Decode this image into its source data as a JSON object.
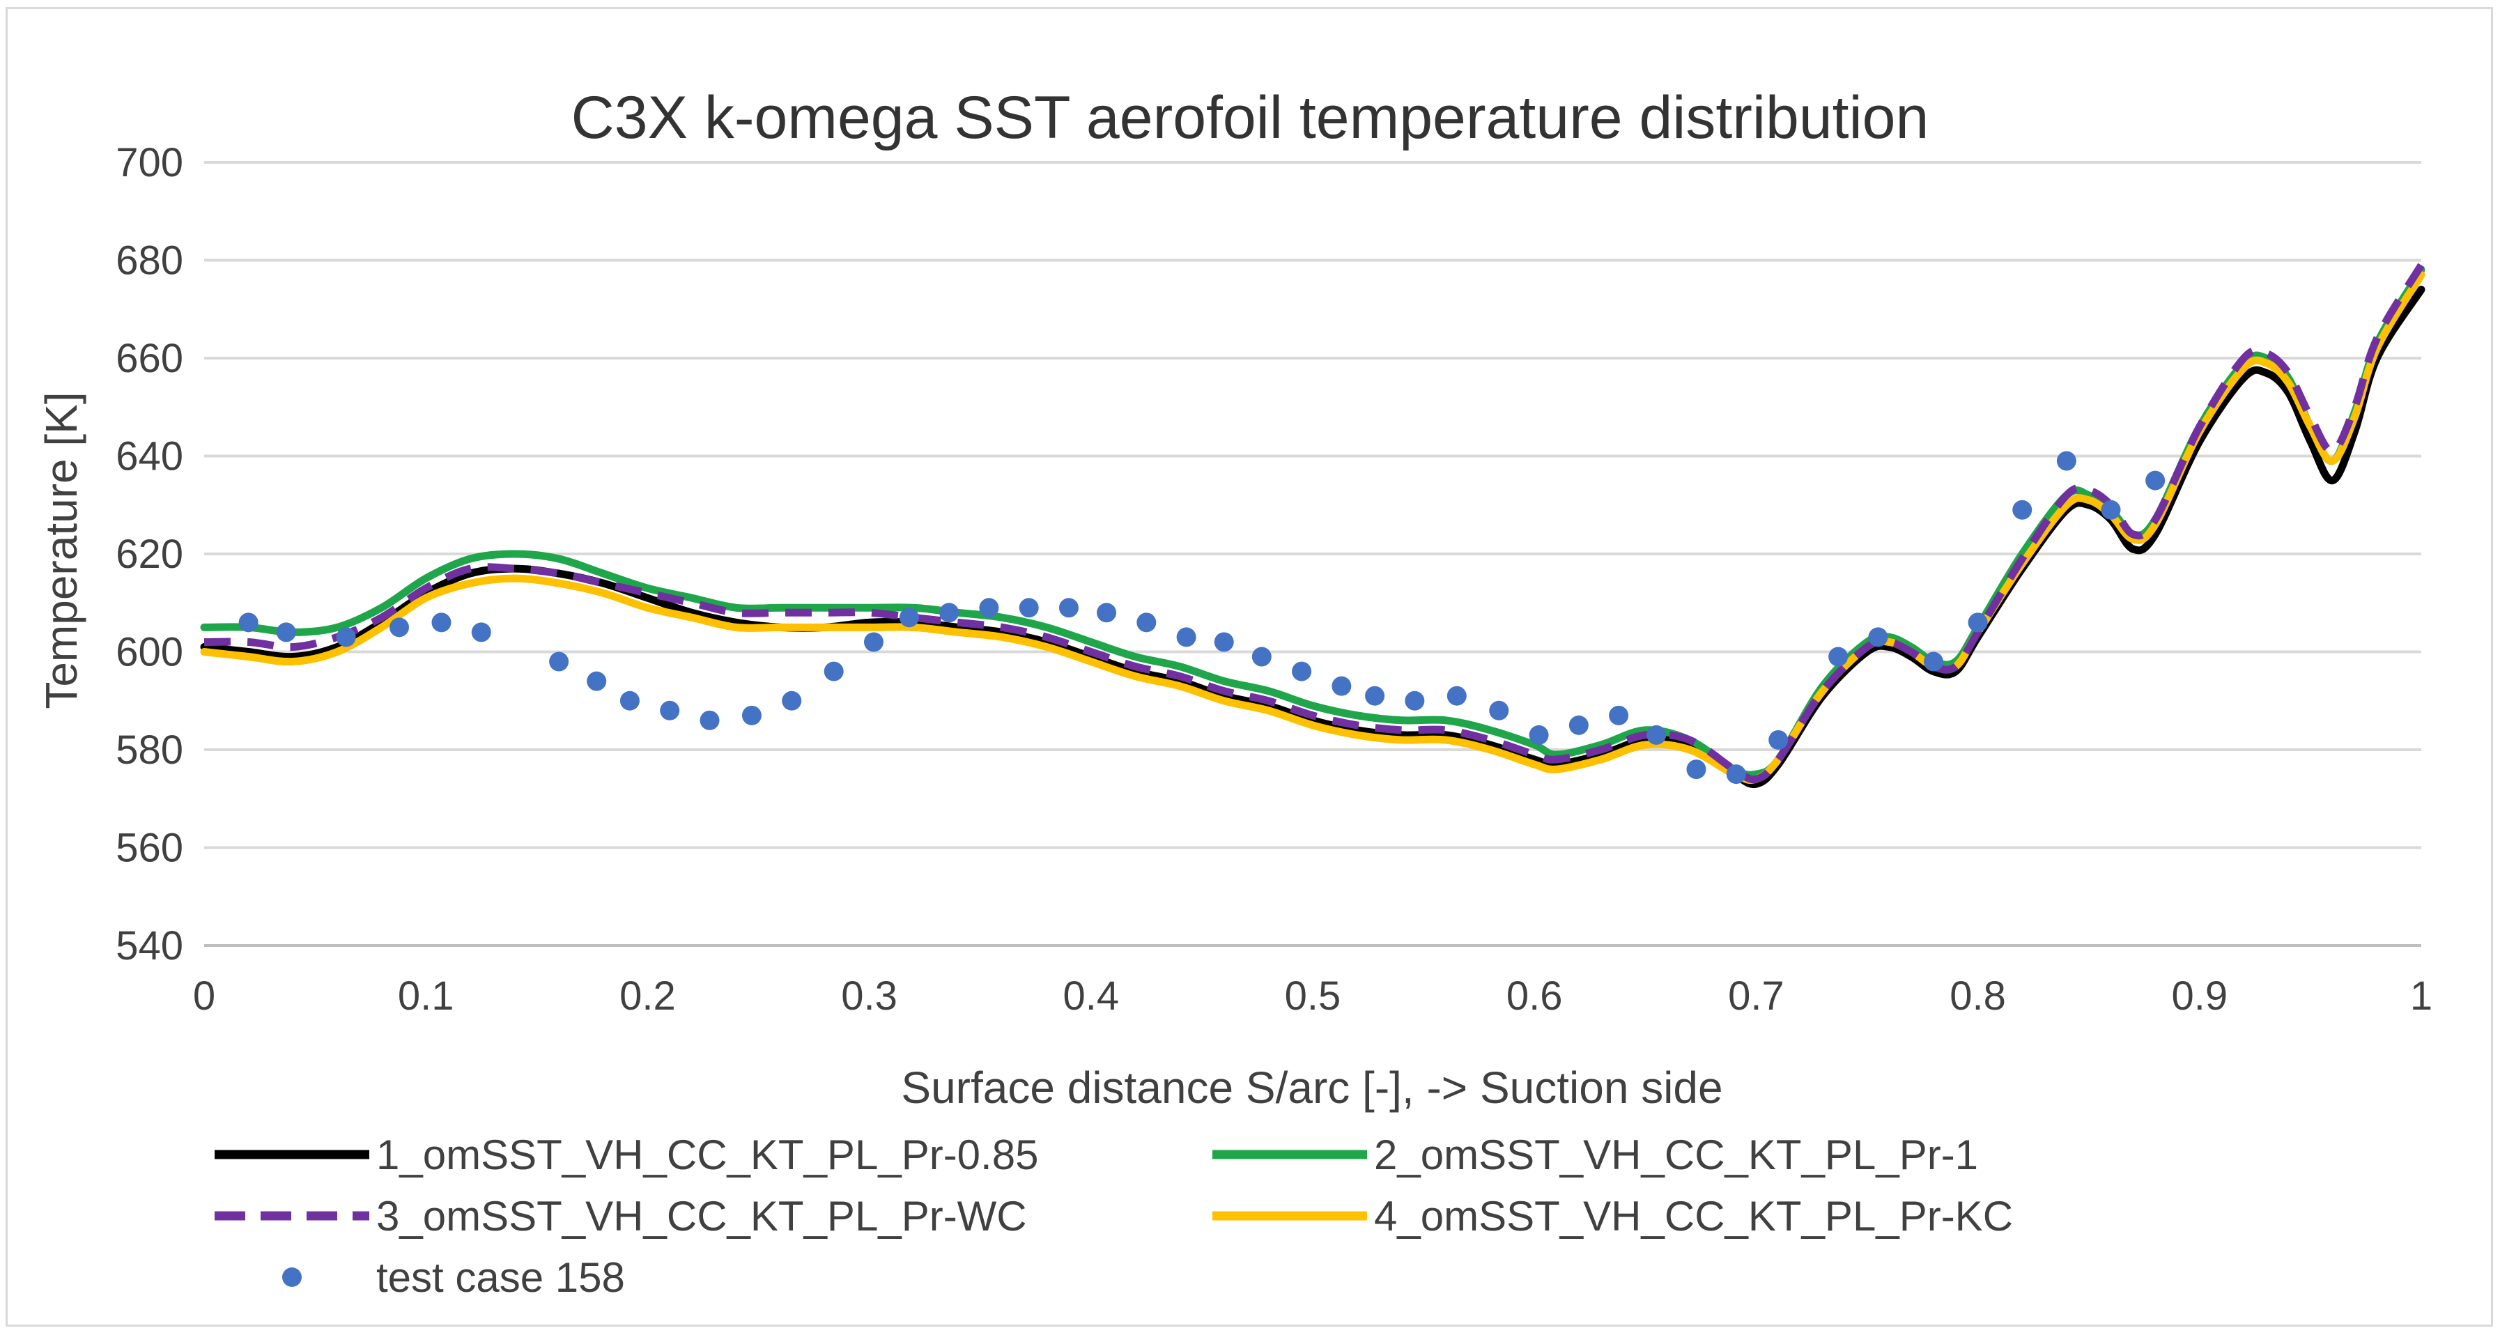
{
  "chart_data": {
    "type": "line",
    "title": "C3X k-omega SST aerofoil temperature distribution",
    "xlabel": "Surface distance S/arc [-], -> Suction side",
    "ylabel": "Temperature [K]",
    "xlim": [
      0,
      1
    ],
    "ylim": [
      540,
      700
    ],
    "xticks": [
      0,
      0.1,
      0.2,
      0.3,
      0.4,
      0.5,
      0.6,
      0.7,
      0.8,
      0.9,
      1
    ],
    "xtick_labels": [
      "0",
      "0.1",
      "0.2",
      "0.3",
      "0.4",
      "0.5",
      "0.6",
      "0.7",
      "0.8",
      "0.9",
      "1"
    ],
    "yticks": [
      540,
      560,
      580,
      600,
      620,
      640,
      660,
      680,
      700
    ],
    "ytick_labels": [
      "540",
      "560",
      "580",
      "600",
      "620",
      "640",
      "660",
      "680",
      "700"
    ],
    "grid": "horizontal",
    "legend_position": "bottom",
    "series": [
      {
        "name": "1_omSST_VH_CC_KT_PL_Pr-0.85",
        "color": "#000000",
        "style": "solid",
        "x": [
          0,
          0.02,
          0.04,
          0.06,
          0.08,
          0.1,
          0.12,
          0.14,
          0.16,
          0.18,
          0.2,
          0.22,
          0.24,
          0.26,
          0.28,
          0.3,
          0.32,
          0.34,
          0.36,
          0.38,
          0.4,
          0.42,
          0.44,
          0.46,
          0.48,
          0.5,
          0.52,
          0.54,
          0.56,
          0.58,
          0.6,
          0.61,
          0.63,
          0.65,
          0.67,
          0.69,
          0.7,
          0.71,
          0.73,
          0.75,
          0.76,
          0.77,
          0.78,
          0.79,
          0.8,
          0.82,
          0.84,
          0.85,
          0.86,
          0.87,
          0.88,
          0.9,
          0.92,
          0.93,
          0.94,
          0.95,
          0.96,
          0.97,
          0.98,
          1.0
        ],
        "y": [
          601,
          600,
          599,
          601,
          606,
          612,
          616,
          617,
          616,
          614,
          611,
          608,
          606,
          605,
          605,
          606,
          606,
          605,
          604,
          602,
          599,
          596,
          594,
          591,
          589,
          586,
          584,
          583,
          583,
          581,
          578,
          577,
          579,
          582,
          581,
          575,
          573,
          577,
          591,
          600,
          601,
          599,
          596,
          596,
          603,
          617,
          629,
          630,
          627,
          621,
          624,
          643,
          656,
          657,
          653,
          643,
          635,
          645,
          660,
          674
        ]
      },
      {
        "name": "2_omSST_VH_CC_KT_PL_Pr-1",
        "color": "#1fa64a",
        "style": "solid",
        "x": [
          0,
          0.02,
          0.04,
          0.06,
          0.08,
          0.1,
          0.12,
          0.14,
          0.16,
          0.18,
          0.2,
          0.22,
          0.24,
          0.26,
          0.28,
          0.3,
          0.32,
          0.34,
          0.36,
          0.38,
          0.4,
          0.42,
          0.44,
          0.46,
          0.48,
          0.5,
          0.52,
          0.54,
          0.56,
          0.58,
          0.6,
          0.61,
          0.63,
          0.65,
          0.67,
          0.69,
          0.7,
          0.71,
          0.73,
          0.75,
          0.76,
          0.77,
          0.78,
          0.79,
          0.8,
          0.82,
          0.84,
          0.85,
          0.86,
          0.87,
          0.88,
          0.9,
          0.92,
          0.93,
          0.94,
          0.95,
          0.96,
          0.97,
          0.98,
          1.0
        ],
        "y": [
          605,
          605,
          604,
          605,
          609,
          615,
          619,
          620,
          619,
          616,
          613,
          611,
          609,
          609,
          609,
          609,
          609,
          608,
          607,
          605,
          602,
          599,
          597,
          594,
          592,
          589,
          587,
          586,
          586,
          584,
          581,
          579,
          581,
          584,
          582,
          576,
          575,
          578,
          593,
          602,
          603,
          601,
          598,
          598,
          605,
          620,
          632,
          632,
          629,
          624,
          627,
          646,
          659,
          660,
          656,
          646,
          639,
          649,
          663,
          678
        ]
      },
      {
        "name": "3_omSST_VH_CC_KT_PL_Pr-WC",
        "color": "#7030a0",
        "style": "dashed",
        "x": [
          0,
          0.02,
          0.04,
          0.06,
          0.08,
          0.1,
          0.12,
          0.14,
          0.16,
          0.18,
          0.2,
          0.22,
          0.24,
          0.26,
          0.28,
          0.3,
          0.32,
          0.34,
          0.36,
          0.38,
          0.4,
          0.42,
          0.44,
          0.46,
          0.48,
          0.5,
          0.52,
          0.54,
          0.56,
          0.58,
          0.6,
          0.61,
          0.63,
          0.65,
          0.67,
          0.69,
          0.7,
          0.71,
          0.73,
          0.75,
          0.76,
          0.77,
          0.78,
          0.79,
          0.8,
          0.82,
          0.84,
          0.85,
          0.86,
          0.87,
          0.88,
          0.9,
          0.92,
          0.93,
          0.94,
          0.95,
          0.96,
          0.97,
          0.98,
          1.0
        ],
        "y": [
          602,
          602,
          601,
          603,
          607,
          613,
          617,
          617,
          616,
          614,
          612,
          610,
          608,
          608,
          608,
          608,
          607,
          606,
          605,
          603,
          600,
          597,
          595,
          592,
          590,
          587,
          585,
          584,
          584,
          582,
          579,
          578,
          580,
          583,
          582,
          576,
          574,
          578,
          592,
          601,
          602,
          600,
          597,
          597,
          604,
          619,
          632,
          633,
          630,
          624,
          627,
          646,
          660,
          661,
          657,
          648,
          641,
          650,
          664,
          679
        ]
      },
      {
        "name": "4_omSST_VH_CC_KT_PL_Pr-KC",
        "color": "#ffc000",
        "style": "solid",
        "x": [
          0,
          0.02,
          0.04,
          0.06,
          0.08,
          0.1,
          0.12,
          0.14,
          0.16,
          0.18,
          0.2,
          0.22,
          0.24,
          0.26,
          0.28,
          0.3,
          0.32,
          0.34,
          0.36,
          0.38,
          0.4,
          0.42,
          0.44,
          0.46,
          0.48,
          0.5,
          0.52,
          0.54,
          0.56,
          0.58,
          0.6,
          0.61,
          0.63,
          0.65,
          0.67,
          0.69,
          0.7,
          0.71,
          0.73,
          0.75,
          0.76,
          0.77,
          0.78,
          0.79,
          0.8,
          0.82,
          0.84,
          0.85,
          0.86,
          0.87,
          0.88,
          0.9,
          0.92,
          0.93,
          0.94,
          0.95,
          0.96,
          0.97,
          0.98,
          1.0
        ],
        "y": [
          600,
          599,
          598,
          600,
          605,
          611,
          614,
          615,
          614,
          612,
          609,
          607,
          605,
          605,
          605,
          605,
          605,
          604,
          603,
          601,
          598,
          595,
          593,
          590,
          588,
          585,
          583,
          582,
          582,
          580,
          577,
          576,
          578,
          581,
          580,
          575,
          574,
          578,
          592,
          601,
          602,
          600,
          597,
          597,
          604,
          618,
          630,
          631,
          628,
          623,
          626,
          645,
          658,
          659,
          655,
          646,
          639,
          648,
          662,
          677
        ]
      }
    ],
    "scatter": {
      "name": "test case 158",
      "color": "#4472c4",
      "x": [
        0.02,
        0.037,
        0.064,
        0.088,
        0.107,
        0.125,
        0.16,
        0.177,
        0.192,
        0.21,
        0.228,
        0.247,
        0.265,
        0.284,
        0.302,
        0.318,
        0.336,
        0.354,
        0.372,
        0.39,
        0.407,
        0.425,
        0.443,
        0.46,
        0.477,
        0.495,
        0.513,
        0.528,
        0.546,
        0.565,
        0.584,
        0.602,
        0.62,
        0.638,
        0.655,
        0.673,
        0.691,
        0.71,
        0.737,
        0.755,
        0.78,
        0.8,
        0.82,
        0.84,
        0.86,
        0.88
      ],
      "y": [
        606,
        604,
        603,
        605,
        606,
        604,
        598,
        594,
        590,
        588,
        586,
        587,
        590,
        596,
        602,
        607,
        608,
        609,
        609,
        609,
        608,
        606,
        603,
        602,
        599,
        596,
        593,
        591,
        590,
        591,
        588,
        583,
        585,
        587,
        583,
        576,
        575,
        582,
        599,
        603,
        598,
        606,
        629,
        639,
        629,
        635
      ]
    }
  }
}
